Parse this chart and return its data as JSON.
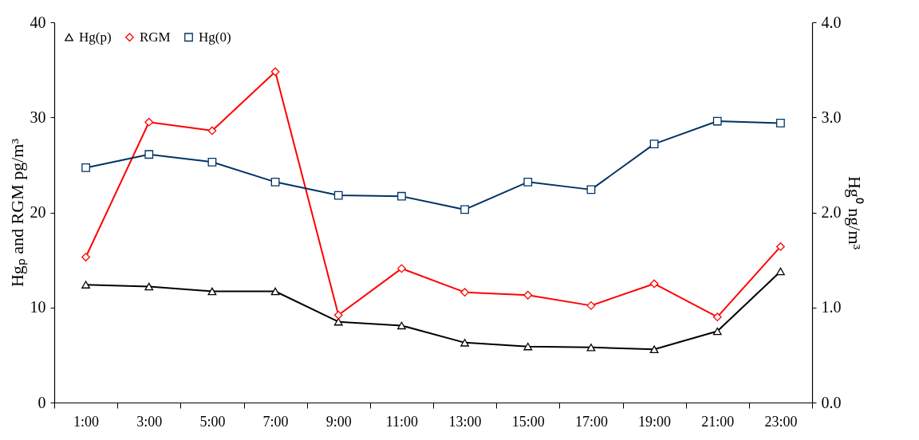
{
  "chart_data": {
    "type": "line",
    "ylabel": "Hgₚ and RGM pg/m³",
    "y2label": "Hg⁰ ng/m³",
    "categories": [
      "1:00",
      "3:00",
      "5:00",
      "7:00",
      "9:00",
      "11:00",
      "13:00",
      "15:00",
      "17:00",
      "19:00",
      "21:00",
      "23:00"
    ],
    "series": [
      {
        "name": "Hg(p)",
        "color": "#000000",
        "marker": "triangle",
        "values": [
          12.4,
          12.2,
          11.7,
          11.7,
          8.5,
          8.1,
          6.3,
          5.9,
          5.8,
          5.6,
          7.5,
          13.8
        ]
      },
      {
        "name": "RGM",
        "color": "#ff0000",
        "marker": "diamond",
        "values": [
          15.3,
          29.5,
          28.6,
          34.8,
          9.2,
          14.1,
          11.6,
          11.3,
          10.2,
          12.5,
          9.0,
          16.4
        ]
      },
      {
        "name": "Hg(0)",
        "color": "#003366",
        "marker": "square",
        "axis": "y2",
        "values": [
          2.47,
          2.61,
          2.53,
          2.32,
          2.18,
          2.17,
          2.03,
          2.32,
          2.24,
          2.72,
          2.96,
          2.94
        ]
      }
    ],
    "ylim": [
      0,
      40
    ],
    "yticks": [
      0,
      10,
      20,
      30,
      40
    ],
    "y2lim": [
      0,
      4
    ],
    "y2ticks": [
      {
        "value": 0,
        "label": "0.0"
      },
      {
        "value": 1,
        "label": "1.0"
      },
      {
        "value": 2,
        "label": "2.0"
      },
      {
        "value": 3,
        "label": "3.0"
      },
      {
        "value": 4,
        "label": "4.0"
      }
    ],
    "legend": "top left",
    "line_style": "solid"
  }
}
